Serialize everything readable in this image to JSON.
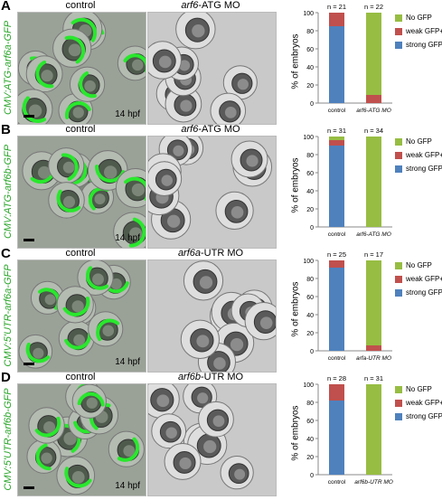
{
  "figure": {
    "colors": {
      "no_gfp": "#97bd43",
      "weak_gfp": "#c0504d",
      "strong_gfp": "#4f81bd",
      "label_green": "#2aa52a"
    },
    "time_label": "14 hpf",
    "axis_label": "% of embryos",
    "legend": [
      "No GFP",
      "weak GFP+",
      "strong GFP+"
    ],
    "panels": [
      {
        "letter": "A",
        "construct": "CMV:ATG-arf6a-GFP",
        "control_title": "control",
        "mo_title_italic": "arf6",
        "mo_title_rest": "-ATG MO",
        "show_hpf_on_control": true
      },
      {
        "letter": "B",
        "construct": "CMV:ATG-arf6b-GFP",
        "control_title": "control",
        "mo_title_italic": "arf6",
        "mo_title_rest": "-ATG MO",
        "show_hpf_on_control": true
      },
      {
        "letter": "C",
        "construct": "CMV:5'UTR-arf6a-GFP",
        "control_title": "control",
        "mo_title_italic": "arf6a",
        "mo_title_rest": "-UTR MO",
        "show_hpf_on_control": true
      },
      {
        "letter": "D",
        "construct": "CMV:5'UTR-arf6b-GFP",
        "control_title": "control",
        "mo_title_italic": "arf6b",
        "mo_title_rest": "-UTR MO",
        "show_hpf_on_control": true
      }
    ]
  },
  "chart_data": [
    {
      "type": "bar",
      "stacked": true,
      "categories": [
        "control",
        "arf6-ATG MO"
      ],
      "n_labels": [
        "n = 21",
        "n = 22"
      ],
      "yticks": [
        0,
        20,
        40,
        60,
        80,
        100
      ],
      "ylim": [
        0,
        100
      ],
      "ylabel": "% of embryos",
      "series": [
        {
          "name": "strong GFP+",
          "values": [
            85,
            0
          ]
        },
        {
          "name": "weak GFP+",
          "values": [
            15,
            9
          ]
        },
        {
          "name": "No GFP",
          "values": [
            0,
            91
          ]
        }
      ]
    },
    {
      "type": "bar",
      "stacked": true,
      "categories": [
        "control",
        "arf6-ATG MO"
      ],
      "n_labels": [
        "n = 31",
        "n = 34"
      ],
      "yticks": [
        0,
        20,
        40,
        60,
        80,
        100
      ],
      "ylim": [
        0,
        100
      ],
      "ylabel": "% of embryos",
      "series": [
        {
          "name": "strong GFP+",
          "values": [
            90,
            0
          ]
        },
        {
          "name": "weak GFP+",
          "values": [
            6,
            0
          ]
        },
        {
          "name": "No GFP",
          "values": [
            4,
            100
          ]
        }
      ]
    },
    {
      "type": "bar",
      "stacked": true,
      "categories": [
        "control",
        "arfa-UTR MO"
      ],
      "n_labels": [
        "n = 25",
        "n = 17"
      ],
      "yticks": [
        0,
        20,
        40,
        60,
        80,
        100
      ],
      "ylim": [
        0,
        100
      ],
      "ylabel": "% of embryos",
      "series": [
        {
          "name": "strong GFP+",
          "values": [
            92,
            0
          ]
        },
        {
          "name": "weak GFP+",
          "values": [
            8,
            6
          ]
        },
        {
          "name": "No GFP",
          "values": [
            0,
            94
          ]
        }
      ]
    },
    {
      "type": "bar",
      "stacked": true,
      "categories": [
        "control",
        "arf6b-UTR MO"
      ],
      "n_labels": [
        "n = 28",
        "n = 31"
      ],
      "yticks": [
        0,
        20,
        40,
        60,
        80,
        100
      ],
      "ylim": [
        0,
        100
      ],
      "ylabel": "% of embryos",
      "series": [
        {
          "name": "strong GFP+",
          "values": [
            82,
            0
          ]
        },
        {
          "name": "weak GFP+",
          "values": [
            18,
            0
          ]
        },
        {
          "name": "No GFP",
          "values": [
            0,
            100
          ]
        }
      ]
    }
  ]
}
